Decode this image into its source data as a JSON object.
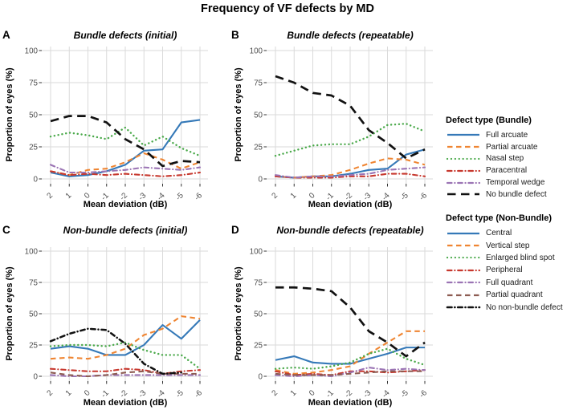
{
  "figure": {
    "title": "Frequency of VF defects by MD"
  },
  "axes": {
    "x_label": "Mean deviation (dB)",
    "y_label": "Proportion of eyes (%)",
    "x_ticks": [
      "2",
      "1",
      "0",
      "-1",
      "-2",
      "-3",
      "-4",
      "-5",
      "-6"
    ],
    "y_ticks": [
      "0",
      "25",
      "50",
      "75",
      "100"
    ]
  },
  "colors": {
    "blue": "#3579b8",
    "orange": "#ef8532",
    "green": "#4aa94a",
    "red": "#c7382e",
    "purple": "#9b74b4",
    "brown": "#8d5c52",
    "black": "#111111",
    "grid": "#dadada",
    "tick_text": "#4d4d4d"
  },
  "legends": [
    {
      "title": "Defect type (Bundle)",
      "items": [
        {
          "label": "Full arcuate",
          "color": "#3579b8",
          "dash": "solid"
        },
        {
          "label": "Partial arcuate",
          "color": "#ef8532",
          "dash": "dashed"
        },
        {
          "label": "Nasal step",
          "color": "#4aa94a",
          "dash": "dotted"
        },
        {
          "label": "Paracentral",
          "color": "#c7382e",
          "dash": "dashdot"
        },
        {
          "label": "Temporal wedge",
          "color": "#9b74b4",
          "dash": "dashdot"
        },
        {
          "label": "No bundle defect",
          "color": "#111111",
          "dash": "longdash"
        }
      ]
    },
    {
      "title": "Defect type (Non-Bundle)",
      "items": [
        {
          "label": "Central",
          "color": "#3579b8",
          "dash": "solid"
        },
        {
          "label": "Vertical step",
          "color": "#ef8532",
          "dash": "dashed"
        },
        {
          "label": "Enlarged blind spot",
          "color": "#4aa94a",
          "dash": "dotted"
        },
        {
          "label": "Peripheral",
          "color": "#c7382e",
          "dash": "dashdot"
        },
        {
          "label": "Full quadrant",
          "color": "#9b74b4",
          "dash": "dashdot"
        },
        {
          "label": "Partial quadrant",
          "color": "#8d5c52",
          "dash": "dashed"
        },
        {
          "label": "No non-bundle defect",
          "color": "#111111",
          "dash": "dashdot"
        }
      ]
    }
  ],
  "chart_data": [
    {
      "id": "A",
      "type": "line",
      "title": "Bundle defects (initial)",
      "x": [
        2,
        1,
        0,
        -1,
        -2,
        -3,
        -4,
        -5,
        -6
      ],
      "ylim": [
        0,
        100
      ],
      "xlabel": "Mean deviation (dB)",
      "ylabel": "Proportion of eyes (%)",
      "series": [
        {
          "name": "Full arcuate",
          "color": "#3579b8",
          "dash": "solid",
          "values": [
            5,
            2,
            3,
            6,
            11,
            22,
            23,
            44,
            46
          ]
        },
        {
          "name": "Partial arcuate",
          "color": "#ef8532",
          "dash": "dashed",
          "values": [
            6,
            3,
            7,
            8,
            13,
            20,
            15,
            8,
            13
          ]
        },
        {
          "name": "Nasal step",
          "color": "#4aa94a",
          "dash": "dotted",
          "values": [
            33,
            36,
            34,
            31,
            40,
            26,
            33,
            24,
            18
          ]
        },
        {
          "name": "Paracentral",
          "color": "#c7382e",
          "dash": "dashdot",
          "values": [
            6,
            3,
            4,
            3,
            4,
            3,
            2,
            3,
            5
          ]
        },
        {
          "name": "Temporal wedge",
          "color": "#9b74b4",
          "dash": "dashdot",
          "values": [
            11,
            5,
            5,
            6,
            7,
            9,
            8,
            7,
            9
          ]
        },
        {
          "name": "No bundle defect",
          "color": "#111111",
          "dash": "longdash",
          "values": [
            45,
            49,
            49,
            44,
            31,
            23,
            10,
            14,
            13
          ]
        }
      ]
    },
    {
      "id": "B",
      "type": "line",
      "title": "Bundle defects (repeatable)",
      "x": [
        2,
        1,
        0,
        -1,
        -2,
        -3,
        -4,
        -5,
        -6
      ],
      "ylim": [
        0,
        100
      ],
      "xlabel": "Mean deviation (dB)",
      "ylabel": "Proportion of eyes (%)",
      "series": [
        {
          "name": "Full arcuate",
          "color": "#3579b8",
          "dash": "solid",
          "values": [
            2,
            1,
            2,
            2,
            4,
            7,
            8,
            19,
            23
          ]
        },
        {
          "name": "Partial arcuate",
          "color": "#ef8532",
          "dash": "dashed",
          "values": [
            2,
            1,
            2,
            3,
            7,
            12,
            16,
            15,
            11
          ]
        },
        {
          "name": "Nasal step",
          "color": "#4aa94a",
          "dash": "dotted",
          "values": [
            18,
            22,
            26,
            27,
            27,
            33,
            42,
            43,
            37
          ]
        },
        {
          "name": "Paracentral",
          "color": "#c7382e",
          "dash": "dashdot",
          "values": [
            2,
            1,
            1,
            1,
            2,
            2,
            4,
            4,
            2
          ]
        },
        {
          "name": "Temporal wedge",
          "color": "#9b74b4",
          "dash": "dashdot",
          "values": [
            3,
            1,
            2,
            2,
            3,
            4,
            7,
            8,
            9
          ]
        },
        {
          "name": "No bundle defect",
          "color": "#111111",
          "dash": "longdash",
          "values": [
            80,
            75,
            67,
            65,
            57,
            38,
            28,
            16,
            23
          ]
        }
      ]
    },
    {
      "id": "C",
      "type": "line",
      "title": "Non-bundle defects (initial)",
      "x": [
        2,
        1,
        0,
        -1,
        -2,
        -3,
        -4,
        -5,
        -6
      ],
      "ylim": [
        0,
        100
      ],
      "xlabel": "Mean deviation (dB)",
      "ylabel": "Proportion of eyes (%)",
      "series": [
        {
          "name": "Central",
          "color": "#3579b8",
          "dash": "solid",
          "values": [
            22,
            24,
            22,
            17,
            17,
            25,
            41,
            30,
            45
          ]
        },
        {
          "name": "Vertical step",
          "color": "#ef8532",
          "dash": "dashed",
          "values": [
            14,
            15,
            14,
            17,
            22,
            33,
            38,
            48,
            46
          ]
        },
        {
          "name": "Enlarged blind spot",
          "color": "#4aa94a",
          "dash": "dotted",
          "values": [
            24,
            25,
            25,
            24,
            27,
            21,
            17,
            17,
            6
          ]
        },
        {
          "name": "Peripheral",
          "color": "#c7382e",
          "dash": "dashdot",
          "values": [
            6,
            5,
            4,
            4,
            6,
            5,
            2,
            4,
            5
          ]
        },
        {
          "name": "Full quadrant",
          "color": "#9b74b4",
          "dash": "dashdot",
          "values": [
            1,
            0,
            0,
            1,
            1,
            1,
            1,
            1,
            1
          ]
        },
        {
          "name": "Partial quadrant",
          "color": "#8d5c52",
          "dash": "dashed",
          "values": [
            3,
            1,
            0,
            1,
            3,
            4,
            2,
            2,
            2
          ]
        },
        {
          "name": "No non-bundle defect",
          "color": "#111111",
          "dash": "dashdot",
          "values": [
            28,
            34,
            38,
            37,
            26,
            10,
            2,
            3,
            null
          ]
        }
      ]
    },
    {
      "id": "D",
      "type": "line",
      "title": "Non-bundle defects (repeatable)",
      "x": [
        2,
        1,
        0,
        -1,
        -2,
        -3,
        -4,
        -5,
        -6
      ],
      "ylim": [
        0,
        100
      ],
      "xlabel": "Mean deviation (dB)",
      "ylabel": "Proportion of eyes (%)",
      "series": [
        {
          "name": "Central",
          "color": "#3579b8",
          "dash": "solid",
          "values": [
            13,
            16,
            11,
            10,
            10,
            14,
            18,
            23,
            23
          ]
        },
        {
          "name": "Vertical step",
          "color": "#ef8532",
          "dash": "dashed",
          "values": [
            5,
            2,
            3,
            5,
            8,
            18,
            27,
            36,
            36
          ]
        },
        {
          "name": "Enlarged blind spot",
          "color": "#4aa94a",
          "dash": "dotted",
          "values": [
            6,
            7,
            6,
            8,
            11,
            18,
            22,
            14,
            9
          ]
        },
        {
          "name": "Peripheral",
          "color": "#c7382e",
          "dash": "dashdot",
          "values": [
            4,
            1,
            2,
            1,
            4,
            4,
            3,
            4,
            5
          ]
        },
        {
          "name": "Full quadrant",
          "color": "#9b74b4",
          "dash": "dashdot",
          "values": [
            1,
            0,
            1,
            0,
            3,
            7,
            5,
            6,
            5
          ]
        },
        {
          "name": "Partial quadrant",
          "color": "#8d5c52",
          "dash": "dashed",
          "values": [
            2,
            1,
            1,
            1,
            2,
            3,
            4,
            4,
            4
          ]
        },
        {
          "name": "No non-bundle defect",
          "color": "#111111",
          "dash": "longdash",
          "values": [
            71,
            71,
            70,
            68,
            55,
            36,
            27,
            16,
            27
          ]
        }
      ]
    }
  ]
}
